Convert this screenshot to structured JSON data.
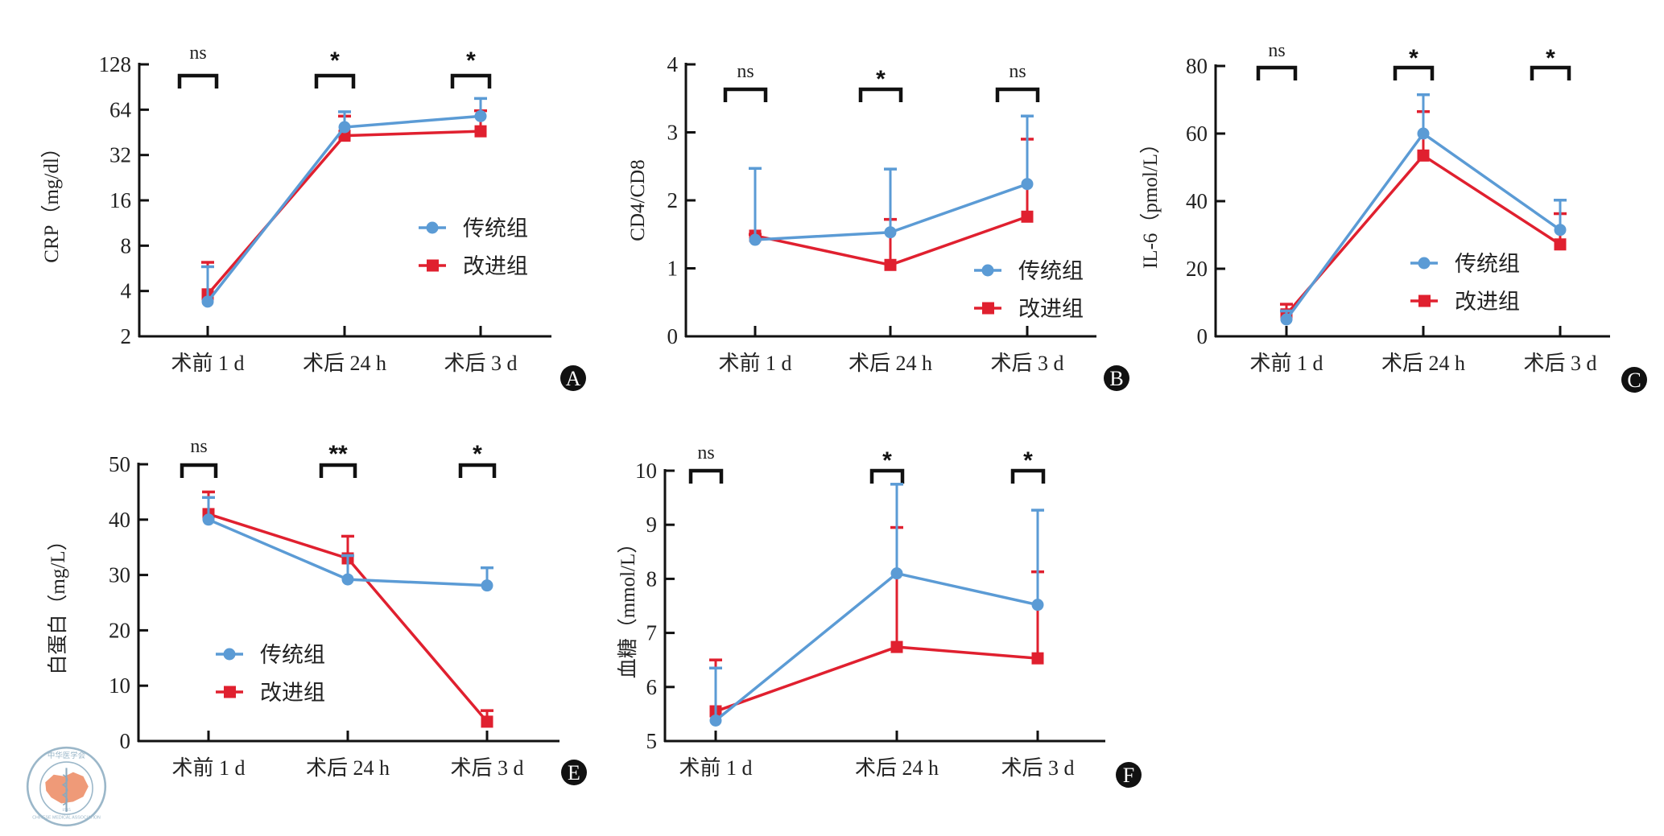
{
  "colors": {
    "traditional": "#5b9bd5",
    "improved": "#e0202f",
    "axis": "#111111"
  },
  "legend": {
    "traditional": "传统组",
    "improved": "改进组"
  },
  "logo": {
    "top_text": "中华医学会",
    "bottom_text": "CHINESE MEDICAL ASSOCIATION",
    "year": "1915"
  },
  "chart_data": [
    {
      "panel": "A",
      "type": "line",
      "scale": "log2",
      "ylabel": "CRP（mg/dl）",
      "categories": [
        "术前 1 d",
        "术后 24 h",
        "术后 3 d"
      ],
      "yticks": [
        2,
        4,
        8,
        16,
        32,
        64,
        128
      ],
      "ylim": [
        2,
        128
      ],
      "significance": [
        "ns",
        "*",
        "*"
      ],
      "legend_position": "right-middle",
      "series": [
        {
          "name": "传统组",
          "marker": "circle",
          "values": [
            3.4,
            49,
            58
          ],
          "error_upper": [
            5.8,
            62,
            76
          ]
        },
        {
          "name": "改进组",
          "marker": "square",
          "values": [
            3.8,
            43,
            46
          ],
          "error_upper": [
            6.2,
            58,
            63
          ]
        }
      ]
    },
    {
      "panel": "B",
      "type": "line",
      "scale": "linear",
      "ylabel": "CD4/CD8",
      "categories": [
        "术前 1 d",
        "术后 24 h",
        "术后 3 d"
      ],
      "yticks": [
        0,
        1,
        2,
        3,
        4
      ],
      "ylim": [
        0,
        4
      ],
      "significance": [
        "ns",
        "*",
        "ns"
      ],
      "legend_position": "bottom-right",
      "series": [
        {
          "name": "传统组",
          "marker": "circle",
          "values": [
            1.42,
            1.53,
            2.24
          ],
          "error_upper": [
            2.47,
            2.46,
            3.24
          ]
        },
        {
          "name": "改进组",
          "marker": "square",
          "values": [
            1.48,
            1.05,
            1.76
          ],
          "error_upper": [
            1.5,
            1.72,
            2.9
          ]
        }
      ]
    },
    {
      "panel": "C",
      "type": "line",
      "scale": "linear",
      "ylabel": "IL-6（pmol/L）",
      "categories": [
        "术前 1 d",
        "术后 24 h",
        "术后 3 d"
      ],
      "yticks": [
        0,
        20,
        40,
        60,
        80
      ],
      "ylim": [
        0,
        80
      ],
      "significance": [
        "ns",
        "*",
        "*"
      ],
      "legend_position": "bottom-center",
      "series": [
        {
          "name": "传统组",
          "marker": "circle",
          "values": [
            5,
            60,
            31.5
          ],
          "error_upper": [
            7.5,
            71.5,
            40.3
          ]
        },
        {
          "name": "改进组",
          "marker": "square",
          "values": [
            6.5,
            53.5,
            27.2
          ],
          "error_upper": [
            9.5,
            66.5,
            36.3
          ]
        }
      ]
    },
    {
      "panel": "E",
      "type": "line",
      "scale": "linear",
      "ylabel": "白蛋白（mg/L）",
      "categories": [
        "术前 1 d",
        "术后 24 h",
        "术后 3 d"
      ],
      "yticks": [
        0,
        10,
        20,
        30,
        40,
        50
      ],
      "ylim": [
        0,
        50
      ],
      "significance": [
        "ns",
        "**",
        "*"
      ],
      "legend_position": "bottom-left",
      "series": [
        {
          "name": "传统组",
          "marker": "circle",
          "values": [
            40,
            29.2,
            28.1
          ],
          "error_upper": [
            44,
            33.5,
            31.3
          ]
        },
        {
          "name": "改进组",
          "marker": "square",
          "values": [
            41,
            33,
            3.5
          ],
          "error_upper": [
            45,
            37,
            5.5
          ]
        }
      ]
    },
    {
      "panel": "F",
      "type": "line",
      "scale": "linear",
      "ylabel": "血糖（mmol/L）",
      "categories": [
        "术前 1 d",
        "术后 24 h",
        "术后 3 d"
      ],
      "yticks": [
        5,
        6,
        7,
        8,
        9,
        10
      ],
      "ylim": [
        5,
        10
      ],
      "significance": [
        "ns",
        "*",
        "*"
      ],
      "legend_position": "none",
      "series": [
        {
          "name": "传统组",
          "marker": "circle",
          "values": [
            5.38,
            8.1,
            7.52
          ],
          "error_upper": [
            6.35,
            9.75,
            9.27
          ]
        },
        {
          "name": "改进组",
          "marker": "square",
          "values": [
            5.55,
            6.74,
            6.53
          ],
          "error_upper": [
            6.5,
            8.95,
            8.13
          ]
        }
      ]
    }
  ]
}
